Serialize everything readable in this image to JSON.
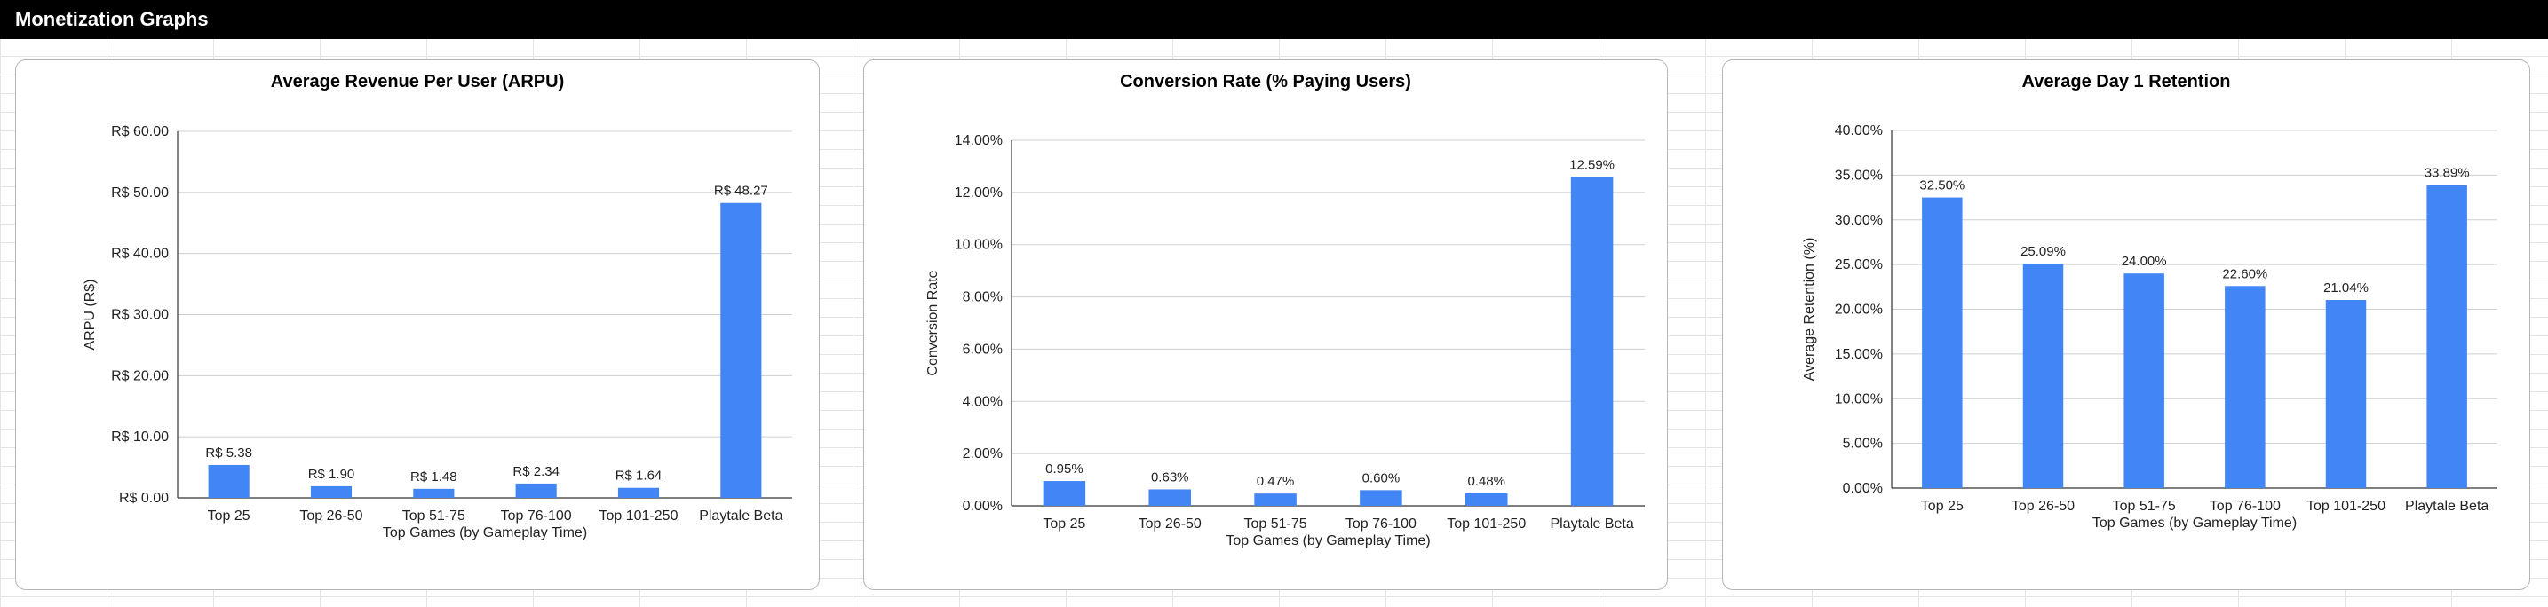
{
  "header": {
    "title": "Monetization Graphs"
  },
  "colors": {
    "bar": "#4285f4",
    "header_bg": "#000000",
    "header_text": "#ffffff"
  },
  "chart_data": [
    {
      "type": "bar",
      "title": "Average Revenue Per User (ARPU)",
      "xlabel": "Top Games (by Gameplay Time)",
      "ylabel": "ARPU (R$)",
      "categories": [
        "Top 25",
        "Top 26-50",
        "Top 51-75",
        "Top 76-100",
        "Top 101-250",
        "Playtale Beta"
      ],
      "values": [
        5.38,
        1.9,
        1.48,
        2.34,
        1.64,
        48.27
      ],
      "value_labels": [
        "R$ 5.38",
        "R$ 1.90",
        "R$ 1.48",
        "R$ 2.34",
        "R$ 1.64",
        "R$ 48.27"
      ],
      "ylim": [
        0,
        60
      ],
      "yticks": [
        0,
        10,
        20,
        30,
        40,
        50,
        60
      ],
      "ytick_labels": [
        "R$ 0.00",
        "R$ 10.00",
        "R$ 20.00",
        "R$ 30.00",
        "R$ 40.00",
        "R$ 50.00",
        "R$ 60.00"
      ],
      "grid": true,
      "legend": "none"
    },
    {
      "type": "bar",
      "title": "Conversion Rate (% Paying Users)",
      "xlabel": "Top Games (by Gameplay Time)",
      "ylabel": "Conversion Rate",
      "categories": [
        "Top 25",
        "Top 26-50",
        "Top 51-75",
        "Top 76-100",
        "Top 101-250",
        "Playtale Beta"
      ],
      "values": [
        0.95,
        0.63,
        0.47,
        0.6,
        0.48,
        12.59
      ],
      "value_labels": [
        "0.95%",
        "0.63%",
        "0.47%",
        "0.60%",
        "0.48%",
        "12.59%"
      ],
      "ylim": [
        0,
        14
      ],
      "yticks": [
        0,
        2,
        4,
        6,
        8,
        10,
        12,
        14
      ],
      "ytick_labels": [
        "0.00%",
        "2.00%",
        "4.00%",
        "6.00%",
        "8.00%",
        "10.00%",
        "12.00%",
        "14.00%"
      ],
      "grid": true,
      "legend": "none"
    },
    {
      "type": "bar",
      "title": "Average Day 1 Retention",
      "xlabel": "Top Games (by Gameplay Time)",
      "ylabel": "Average Retention (%)",
      "categories": [
        "Top 25",
        "Top 26-50",
        "Top 51-75",
        "Top 76-100",
        "Top 101-250",
        "Playtale Beta"
      ],
      "values": [
        32.5,
        25.09,
        24.0,
        22.6,
        21.04,
        33.89
      ],
      "value_labels": [
        "32.50%",
        "25.09%",
        "24.00%",
        "22.60%",
        "21.04%",
        "33.89%"
      ],
      "ylim": [
        0,
        40
      ],
      "yticks": [
        0,
        5,
        10,
        15,
        20,
        25,
        30,
        35,
        40
      ],
      "ytick_labels": [
        "0.00%",
        "5.00%",
        "10.00%",
        "15.00%",
        "20.00%",
        "25.00%",
        "30.00%",
        "35.00%",
        "40.00%"
      ],
      "grid": true,
      "legend": "none"
    }
  ]
}
